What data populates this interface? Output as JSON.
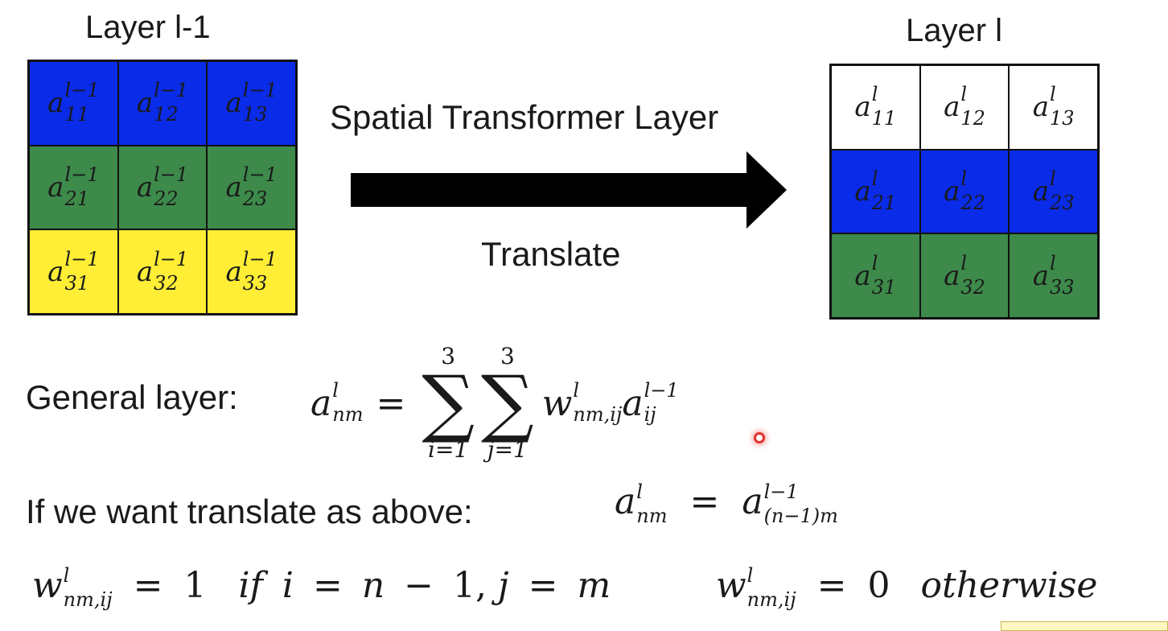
{
  "left_layer": {
    "title": "Layer l-1",
    "rows": [
      {
        "color": "#0a2be8",
        "cells": [
          "11",
          "12",
          "13"
        ]
      },
      {
        "color": "#3d8a4a",
        "cells": [
          "21",
          "22",
          "23"
        ]
      },
      {
        "color": "#ffee35",
        "cells": [
          "31",
          "32",
          "33"
        ]
      }
    ],
    "superscript": "l−1",
    "base": "a"
  },
  "right_layer": {
    "title": "Layer l",
    "rows": [
      {
        "color": "#ffffff",
        "cells": [
          "11",
          "12",
          "13"
        ]
      },
      {
        "color": "#0a2be8",
        "cells": [
          "21",
          "22",
          "23"
        ]
      },
      {
        "color": "#3d8a4a",
        "cells": [
          "31",
          "32",
          "33"
        ]
      }
    ],
    "superscript": "l",
    "base": "a"
  },
  "arrow": {
    "label_top": "Spatial Transformer Layer",
    "label_bottom": "Translate",
    "color": "#000000"
  },
  "equations": {
    "general_label": "General layer:",
    "translate_label": "If we want translate as above:",
    "sum_upper": "3",
    "sum_lower_i": "i=1",
    "sum_lower_j": "j=1",
    "one": "1",
    "zero": "0",
    "if_word": "if",
    "otherwise_word": "otherwise"
  },
  "cursor": {
    "color": "#e0302a"
  }
}
